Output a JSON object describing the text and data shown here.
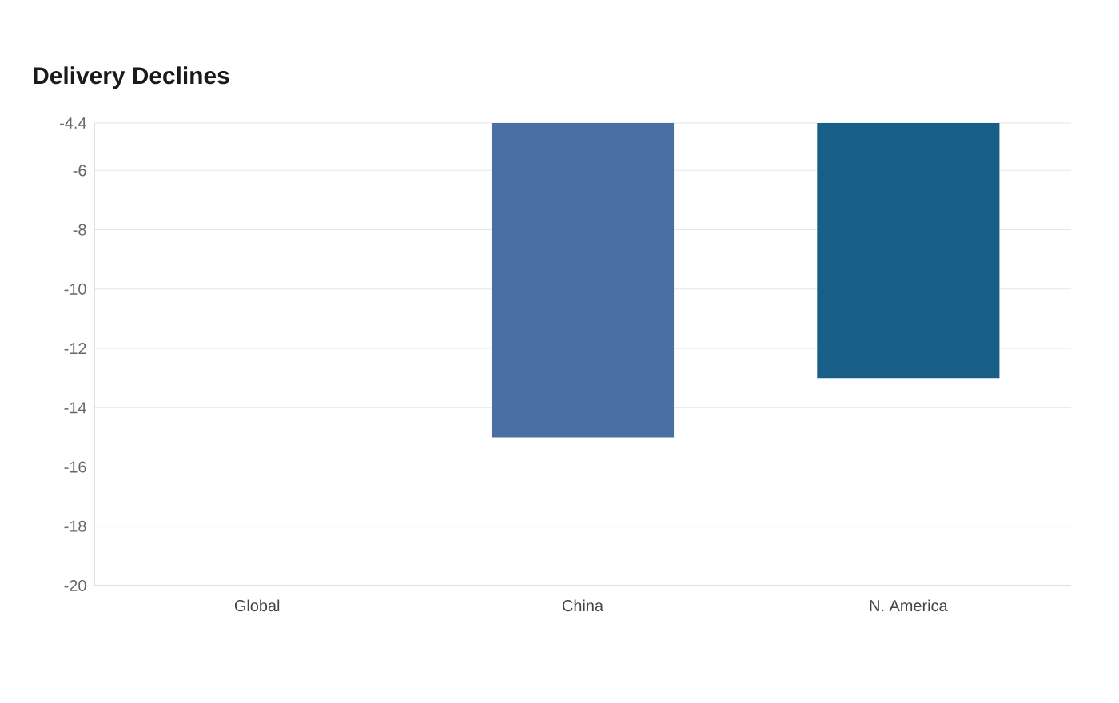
{
  "chart_data": {
    "type": "bar",
    "title": "Delivery Declines",
    "categories": [
      "Global",
      "China",
      "N. America"
    ],
    "values": [
      -4.4,
      -15,
      -13
    ],
    "colors": [
      "#4a6fa5",
      "#4a6fa5",
      "#185f87"
    ],
    "ylim": [
      -20,
      -4.4
    ],
    "yticks": [
      -20,
      -18,
      -16,
      -14,
      -12,
      -10,
      -8,
      -6,
      -4.4
    ],
    "grid": "y"
  }
}
